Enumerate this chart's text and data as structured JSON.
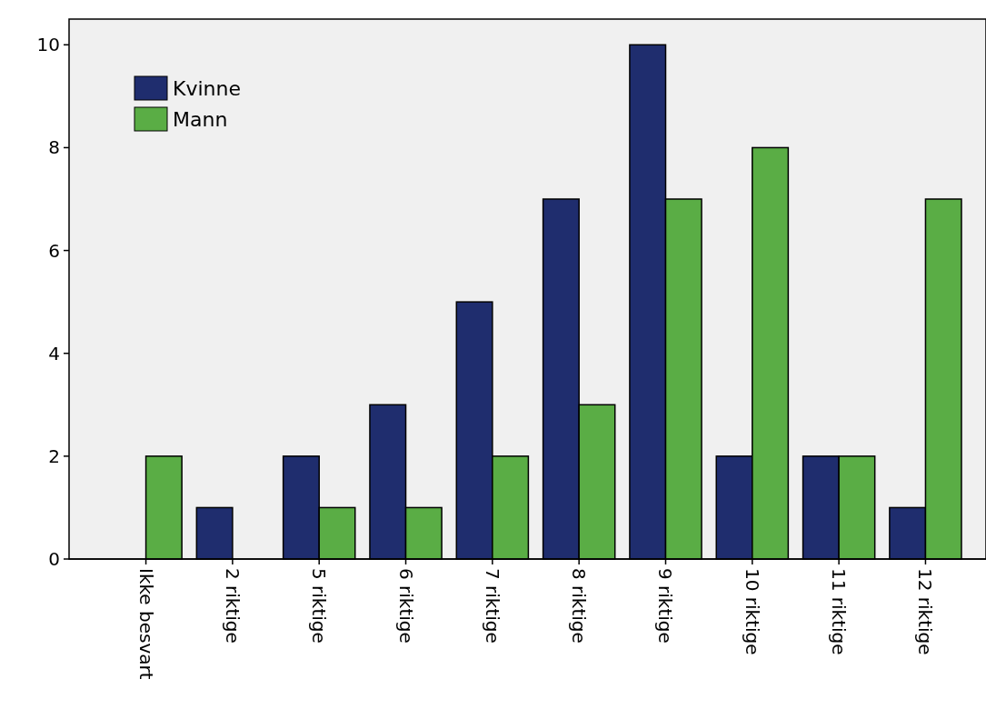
{
  "chart_data": {
    "type": "bar",
    "categories": [
      "Ikke besvart",
      "2 riktige",
      "5 riktige",
      "6 riktige",
      "7 riktige",
      "8 riktige",
      "9 riktige",
      "10 riktige",
      "11 riktige",
      "12 riktige"
    ],
    "series": [
      {
        "name": "Kvinne",
        "color": "#1f2d6e",
        "values": [
          0,
          1,
          2,
          3,
          5,
          7,
          10,
          2,
          2,
          1
        ]
      },
      {
        "name": "Mann",
        "color": "#5aad45",
        "values": [
          2,
          0,
          1,
          1,
          2,
          3,
          7,
          8,
          2,
          7
        ]
      }
    ],
    "ylim": [
      0,
      10.5
    ],
    "yticks": [
      0,
      2,
      4,
      6,
      8,
      10
    ],
    "grid": false,
    "legend": "top left"
  }
}
